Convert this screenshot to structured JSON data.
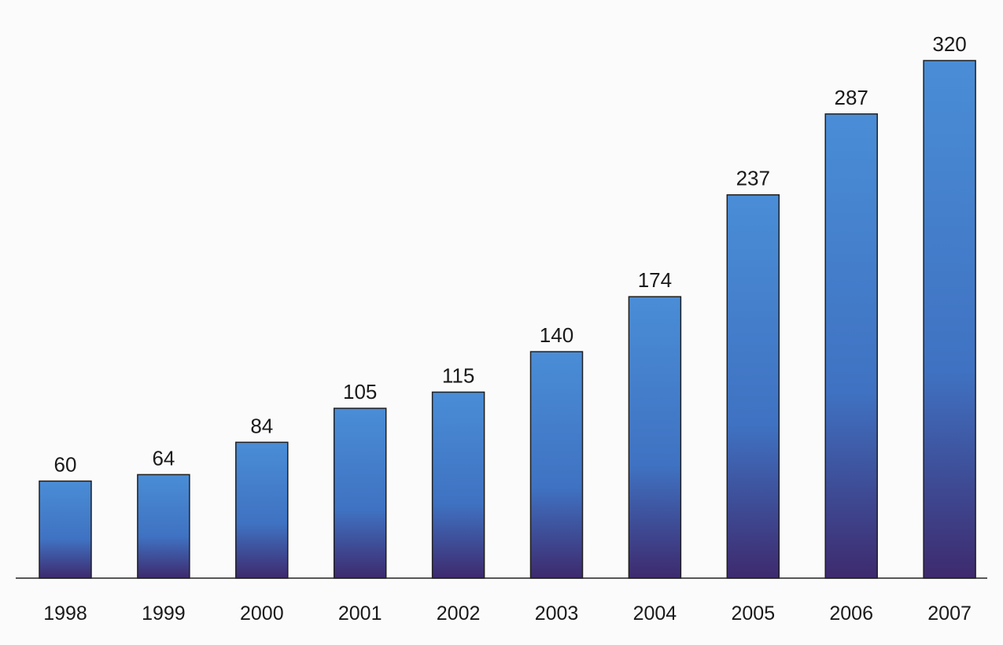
{
  "chart_data": {
    "type": "bar",
    "categories": [
      "1998",
      "1999",
      "2000",
      "2001",
      "2002",
      "2003",
      "2004",
      "2005",
      "2006",
      "2007"
    ],
    "values": [
      60,
      64,
      84,
      105,
      115,
      140,
      174,
      237,
      287,
      320
    ],
    "title": "",
    "xlabel": "",
    "ylabel": "",
    "ylim": [
      0,
      320
    ],
    "grid": false,
    "data_labels": true,
    "colors": {
      "bar_top": "#4a8dd6",
      "bar_mid": "#3f72c2",
      "bar_bottom": "#3e2a6e",
      "bar_edge": "#1f1f1f",
      "axis": "#222222",
      "text": "#1a1a1a",
      "background": "#fbfbfb"
    }
  }
}
